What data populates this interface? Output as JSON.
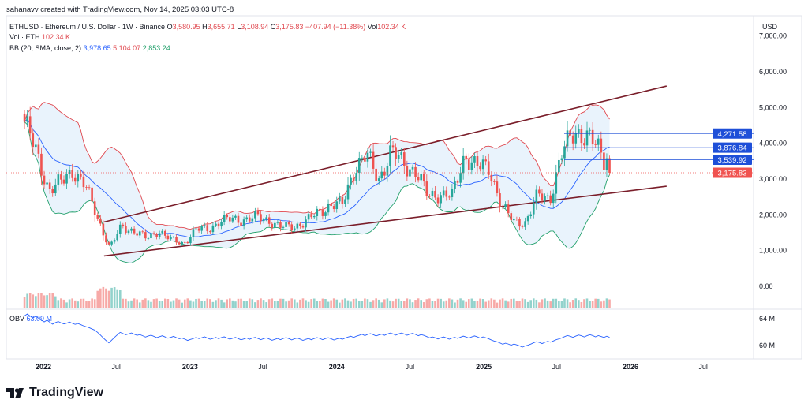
{
  "header": {
    "credit": "sahanavv created with TradingView.com, Nov 14, 2025 03:03 UTC-8"
  },
  "legend": {
    "symbol": "ETHUSD · Ethereum / U.S. Dollar · 1W · Binance",
    "open_label": "O",
    "open": "3,580.95",
    "high_label": "H",
    "high": "3,655.71",
    "low_label": "L",
    "low": "3,108.94",
    "close_label": "C",
    "close": "3,175.83",
    "change": "−407.94 (−11.38%)",
    "vol_label": "Vol",
    "vol": "102.34 K",
    "vol_line_label": "Vol · ETH",
    "vol_line_value": "102.34 K",
    "bb_label": "BB (20, SMA, close, 2)",
    "bb_basis": "3,978.65",
    "bb_upper": "5,104.07",
    "bb_lower": "2,853.24",
    "obv_label": "OBV",
    "obv_value": "63.09 M"
  },
  "logo": "TradingView",
  "colors": {
    "up": "#26a69a",
    "down": "#ef5350",
    "bb_basis": "#2962ff",
    "bb_upper": "#e0484f",
    "bb_lower": "#22a06b",
    "bb_fill": "#e3f0fb",
    "trendline": "#7a1e2a",
    "marker": "#1e4fd8"
  },
  "chart_data": {
    "type": "candlestick",
    "currency": "USD",
    "y_ticks": [
      "7,000.00",
      "6,000.00",
      "5,000.00",
      "4,000.00",
      "3,000.00",
      "2,000.00",
      "1,000.00",
      "0.00"
    ],
    "y_tick_values": [
      7000,
      6000,
      5000,
      4000,
      3000,
      2000,
      1000,
      0
    ],
    "x_ticks": [
      "2022",
      "Jul",
      "2023",
      "Jul",
      "2024",
      "Jul",
      "2025",
      "Jul",
      "2026",
      "Jul"
    ],
    "obv_ticks": [
      "64 M",
      "60 M"
    ],
    "price_labels": [
      {
        "value": 4271.58,
        "text": "4,271.58"
      },
      {
        "value": 3876.84,
        "text": "3,876.84"
      },
      {
        "value": 3539.92,
        "text": "3,539.92"
      },
      {
        "value": 3175.83,
        "text": "3,175.83",
        "current": true
      }
    ],
    "monthly_close_approx": {
      "months": [
        "2021-11",
        "2021-12",
        "2022-01",
        "2022-02",
        "2022-03",
        "2022-04",
        "2022-05",
        "2022-06",
        "2022-07",
        "2022-08",
        "2022-09",
        "2022-10",
        "2022-11",
        "2022-12",
        "2023-01",
        "2023-02",
        "2023-03",
        "2023-04",
        "2023-05",
        "2023-06",
        "2023-07",
        "2023-08",
        "2023-09",
        "2023-10",
        "2023-11",
        "2023-12",
        "2024-01",
        "2024-02",
        "2024-03",
        "2024-04",
        "2024-05",
        "2024-06",
        "2024-07",
        "2024-08",
        "2024-09",
        "2024-10",
        "2024-11",
        "2024-12",
        "2025-01",
        "2025-02",
        "2025-03",
        "2025-04",
        "2025-05",
        "2025-06",
        "2025-07",
        "2025-08",
        "2025-09",
        "2025-10",
        "2025-11"
      ],
      "close": [
        4600,
        3700,
        2700,
        2900,
        3280,
        2800,
        1950,
        1070,
        1680,
        1550,
        1330,
        1570,
        1290,
        1200,
        1580,
        1600,
        1820,
        1870,
        1870,
        1930,
        1860,
        1650,
        1670,
        1810,
        2050,
        2280,
        2280,
        3340,
        3640,
        3010,
        3760,
        3430,
        3230,
        2510,
        2600,
        2510,
        3700,
        3330,
        3300,
        2230,
        1820,
        1790,
        2530,
        2480,
        3700,
        4400,
        4140,
        3850,
        3175.83
      ]
    },
    "trendlines": [
      {
        "from": [
          "2022-06",
          "1800"
        ],
        "to": [
          "2026-04",
          "5600"
        ]
      },
      {
        "from": [
          "2022-06",
          "850"
        ],
        "to": [
          "2026-04",
          "2800"
        ]
      }
    ]
  }
}
